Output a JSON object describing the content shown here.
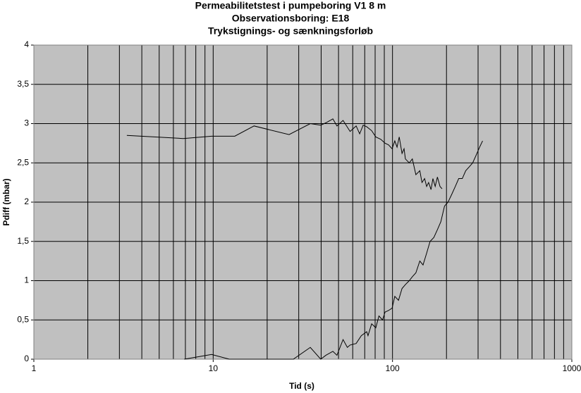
{
  "chart_data": {
    "type": "line",
    "title": [
      "Permeabilitetstest i pumpeboring V1 8 m",
      "Observationsboring: E18",
      "Trykstignings- og sænkningsforløb"
    ],
    "xlabel": "Tid (s)",
    "ylabel": "Pdiff (mbar)",
    "xscale": "log",
    "xlim": [
      1,
      1000
    ],
    "xticks": [
      1,
      10,
      100,
      1000
    ],
    "ylim": [
      0,
      4
    ],
    "yticks": [
      0,
      {
        "value": 0.5,
        "label": "0,5"
      },
      1,
      {
        "value": 1.5,
        "label": "1,5"
      },
      2,
      {
        "value": 2.5,
        "label": "2,5"
      },
      3,
      {
        "value": 3.5,
        "label": "3,5"
      },
      4
    ],
    "grid": true,
    "background": "#c0c0c0",
    "series": [
      {
        "color": "#000000",
        "x": [
          3.3,
          6.8,
          9.8,
          13.2,
          16.9,
          26.5,
          34.8,
          39.8,
          42.5,
          46.5,
          49,
          53,
          58,
          62.7,
          65.6,
          68.6,
          71.8,
          76.5,
          80.7,
          86,
          90.9,
          95,
          99.5,
          103,
          106,
          109,
          113,
          116,
          118,
          124,
          129,
          135,
          142,
          146,
          151,
          155,
          159,
          164,
          168,
          173,
          178,
          184,
          189
        ],
        "values": [
          2.85,
          2.81,
          2.84,
          2.84,
          2.97,
          2.86,
          3.0,
          2.98,
          3.01,
          3.06,
          2.97,
          3.04,
          2.9,
          2.97,
          2.87,
          2.98,
          2.96,
          2.91,
          2.83,
          2.8,
          2.75,
          2.73,
          2.68,
          2.78,
          2.7,
          2.83,
          2.62,
          2.68,
          2.55,
          2.5,
          2.55,
          2.35,
          2.4,
          2.25,
          2.3,
          2.2,
          2.25,
          2.16,
          2.3,
          2.2,
          2.32,
          2.2,
          2.17
        ]
      },
      {
        "color": "#000000",
        "x": [
          6.9,
          9.8,
          12.3,
          20,
          28,
          34.8,
          39.8,
          42.5,
          46.5,
          49,
          53,
          56,
          58,
          62.7,
          67,
          71.8,
          73,
          76.5,
          80.7,
          84,
          88,
          90.9,
          95,
          99.5,
          103,
          108,
          113,
          118,
          124,
          129,
          135,
          142,
          148,
          155,
          162,
          170,
          178,
          186,
          195,
          204,
          214,
          224,
          234,
          245,
          256,
          268,
          280,
          293,
          306,
          318
        ],
        "values": [
          0,
          0.06,
          0,
          0,
          0,
          0.15,
          0,
          0.05,
          0.1,
          0.05,
          0.25,
          0.15,
          0.18,
          0.2,
          0.3,
          0.35,
          0.3,
          0.45,
          0.4,
          0.55,
          0.5,
          0.6,
          0.62,
          0.65,
          0.8,
          0.75,
          0.9,
          0.95,
          1.0,
          1.05,
          1.1,
          1.25,
          1.2,
          1.35,
          1.5,
          1.55,
          1.65,
          1.75,
          1.95,
          2.0,
          2.1,
          2.2,
          2.3,
          2.3,
          2.4,
          2.45,
          2.5,
          2.6,
          2.7,
          2.78
        ]
      }
    ]
  }
}
